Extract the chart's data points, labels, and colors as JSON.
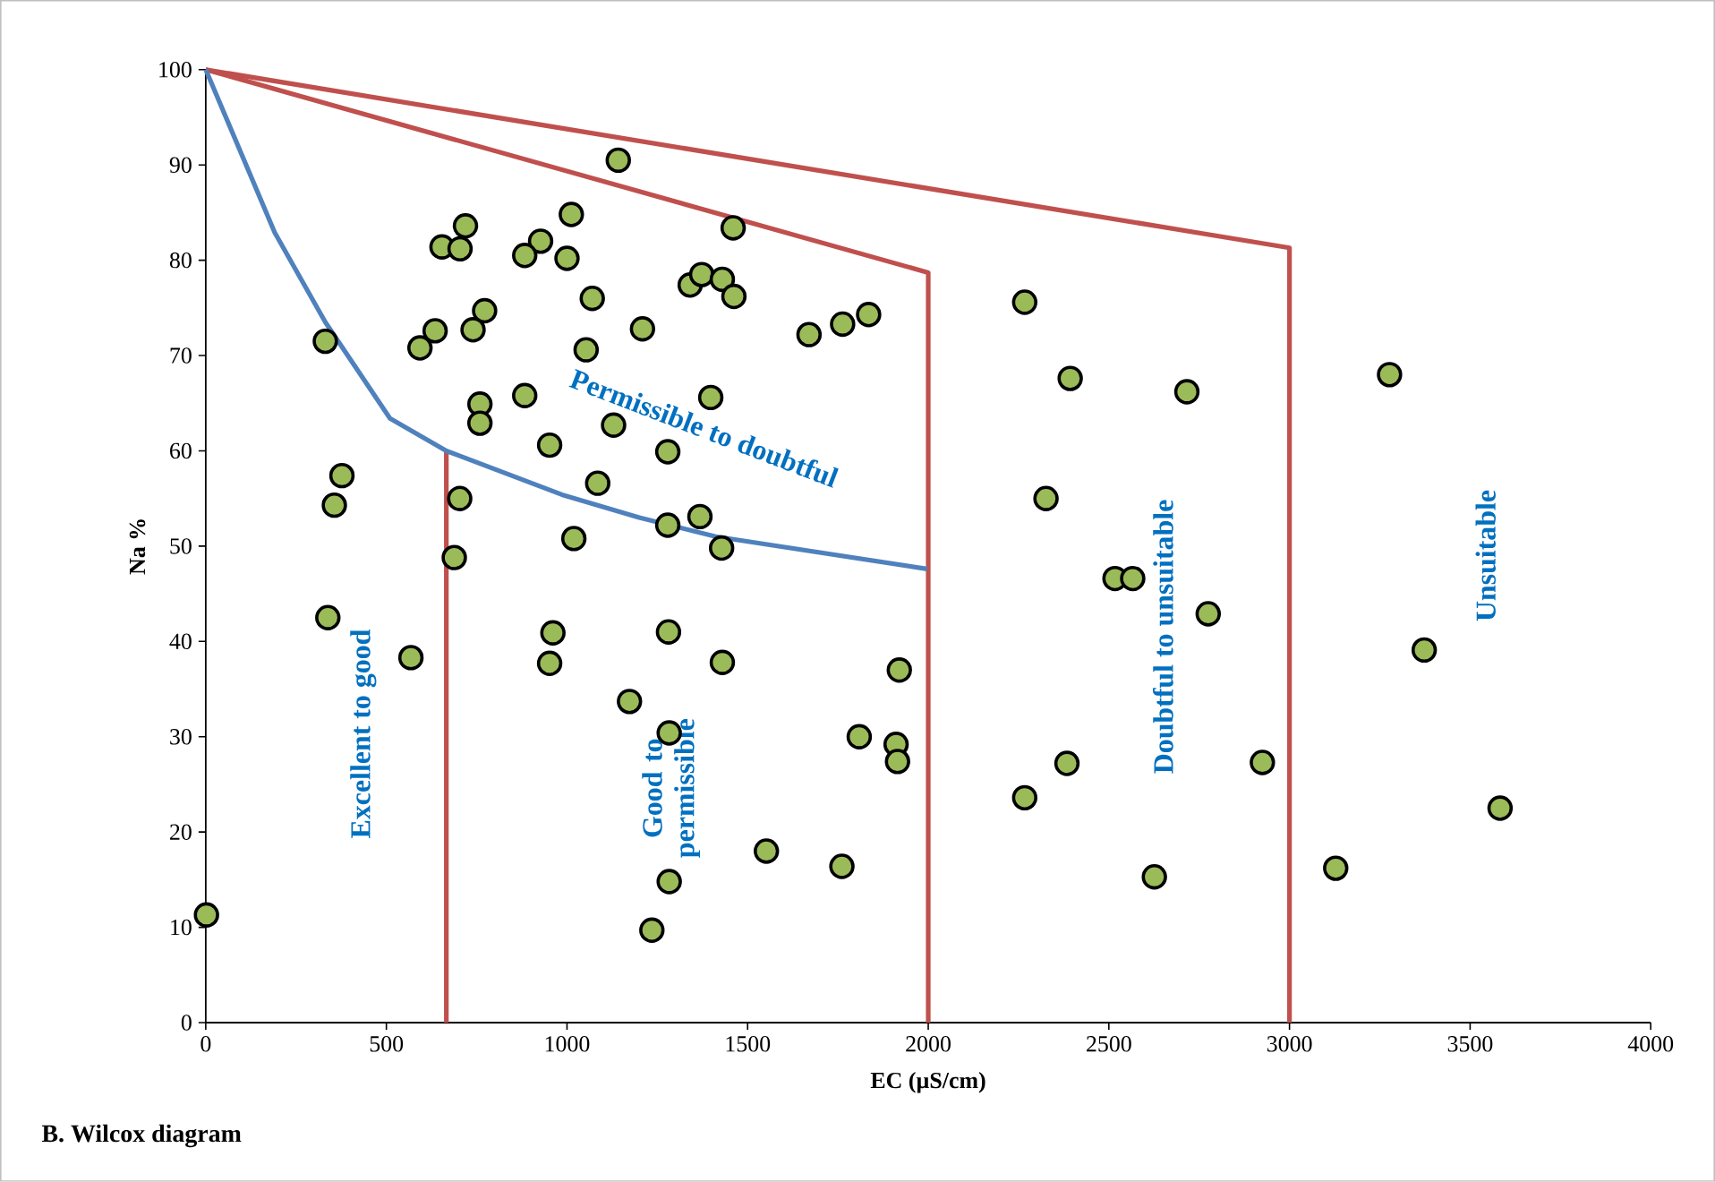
{
  "chart_data": {
    "type": "scatter",
    "xlabel": "EC (µS/cm)",
    "ylabel": "Na %",
    "xlim": [
      0,
      4000
    ],
    "ylim": [
      0,
      100
    ],
    "xticks": [
      0,
      500,
      1000,
      1500,
      2000,
      2500,
      3000,
      3500,
      4000
    ],
    "yticks": [
      0,
      10,
      20,
      30,
      40,
      50,
      60,
      70,
      80,
      90,
      100
    ],
    "grid": false,
    "annotations": [
      "B. Wilcox diagram",
      "Excellent to good",
      "Good to permissible",
      "Permissible to doubtful",
      "Doubtful to unsuitable",
      "Unsuitable"
    ],
    "series": [
      {
        "type": "line",
        "color": "#c0504d",
        "line_style": "solid",
        "marker": "none",
        "x": [
          0,
          2000,
          2000
        ],
        "values": [
          100,
          78.7,
          0
        ]
      },
      {
        "type": "line",
        "color": "#c0504d",
        "line_style": "solid",
        "marker": "none",
        "x": [
          0,
          3000,
          3000
        ],
        "values": [
          100,
          81.3,
          0
        ]
      },
      {
        "type": "line",
        "color": "#c0504d",
        "line_style": "solid",
        "marker": "none",
        "x": [
          666,
          666
        ],
        "values": [
          60,
          0
        ]
      },
      {
        "type": "line",
        "color": "#4f81bd",
        "line_style": "solid",
        "marker": "none",
        "x": [
          0,
          191,
          331,
          510,
          666,
          986,
          1200,
          1412,
          1997
        ],
        "values": [
          100,
          82.9,
          73.5,
          63.4,
          60,
          55.4,
          53.0,
          51.0,
          47.6
        ]
      },
      {
        "color": "#9bbb59",
        "marker": "circle",
        "x": [
          2,
          331,
          593,
          635,
          740,
          772,
          759,
          759,
          883,
          952,
          927,
          883,
          1012,
          1000,
          1070,
          1053,
          1142,
          1129,
          1085,
          1019,
          1209,
          1279,
          1279,
          1368,
          1428,
          1398,
          1341,
          1373,
          1430,
          1462,
          1460,
          377,
          356,
          703,
          688,
          338,
          568,
          961,
          952,
          1173,
          1281,
          1430,
          1283,
          1283,
          1235,
          654,
          704,
          719,
          1670,
          1763,
          1835,
          2267,
          2393,
          2326,
          2517,
          2566,
          1920,
          1809,
          1911,
          1915,
          1552,
          1761,
          2384,
          2267,
          2626,
          2716,
          2775,
          3277,
          3373,
          2925,
          3583,
          3128
        ],
        "values": [
          11.3,
          71.5,
          70.8,
          72.6,
          72.7,
          74.7,
          64.9,
          62.9,
          65.8,
          60.6,
          82.0,
          80.5,
          84.8,
          80.2,
          76.0,
          70.6,
          90.5,
          62.7,
          56.6,
          50.8,
          72.8,
          59.9,
          52.2,
          53.1,
          49.8,
          65.6,
          77.4,
          78.5,
          78.0,
          76.2,
          83.4,
          57.4,
          54.3,
          55.0,
          48.8,
          42.5,
          38.3,
          40.9,
          37.7,
          33.7,
          41.0,
          37.8,
          30.4,
          14.8,
          9.7,
          81.4,
          81.2,
          83.6,
          72.2,
          73.3,
          74.3,
          75.6,
          67.6,
          55.0,
          46.6,
          46.6,
          37.0,
          30.0,
          29.2,
          27.4,
          18.0,
          16.4,
          27.2,
          23.6,
          15.3,
          66.2,
          42.9,
          68.0,
          39.1,
          27.3,
          22.5,
          16.2
        ]
      }
    ]
  }
}
